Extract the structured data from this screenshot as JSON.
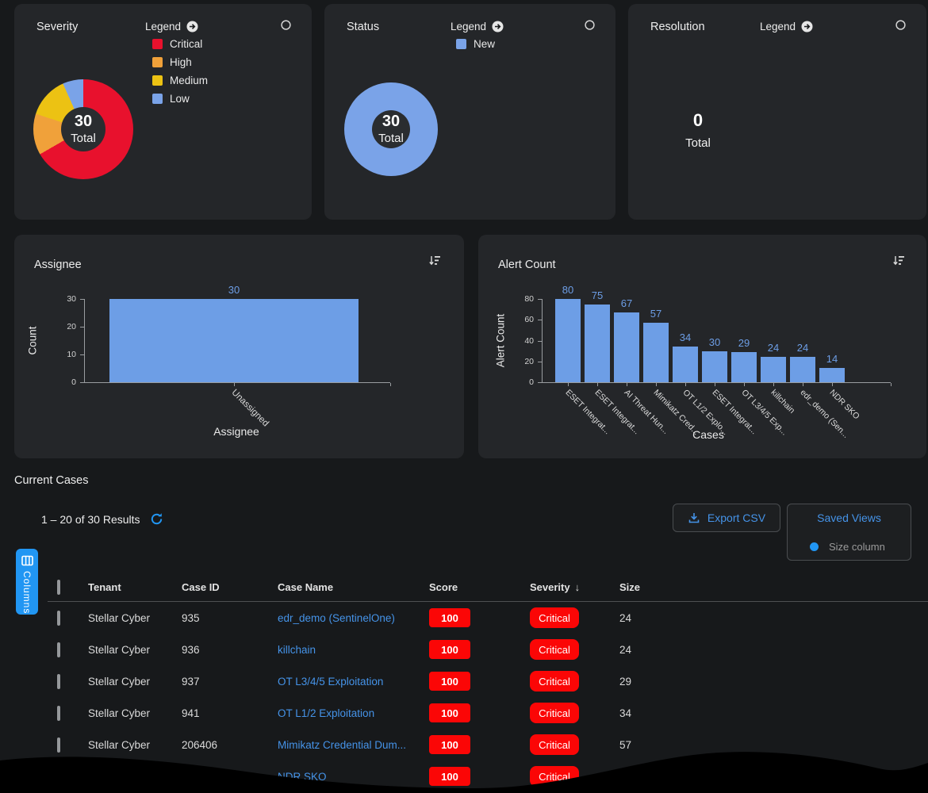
{
  "app": {
    "background": "#17191b",
    "card_bg": "#242629",
    "accent_blue": "#2196f3",
    "link_blue": "#4593e8",
    "bar_blue": "#6d9ee6",
    "badge_red": "#fb0606"
  },
  "cards": {
    "severity": {
      "title": "Severity",
      "legend_title": "Legend",
      "total": "30",
      "total_label": "Total",
      "legend": [
        {
          "label": "Critical",
          "color": "#e8112d"
        },
        {
          "label": "High",
          "color": "#f0a13a"
        },
        {
          "label": "Medium",
          "color": "#ecc213"
        },
        {
          "label": "Low",
          "color": "#7aa3e8"
        }
      ]
    },
    "status": {
      "title": "Status",
      "legend_title": "Legend",
      "total": "30",
      "total_label": "Total",
      "legend": [
        {
          "label": "New",
          "color": "#7aa3e8"
        }
      ]
    },
    "resolution": {
      "title": "Resolution",
      "legend_title": "Legend",
      "total": "0",
      "total_label": "Total",
      "legend": []
    }
  },
  "chart_data": [
    {
      "id": "severity_donut",
      "type": "pie",
      "title": "Severity",
      "labels": [
        "Critical",
        "High",
        "Medium",
        "Low"
      ],
      "values": [
        20,
        4,
        4,
        2
      ],
      "colors": [
        "#e8112d",
        "#f0a13a",
        "#ecc213",
        "#7aa3e8"
      ],
      "total": 30,
      "center_label": "Total",
      "legend_position": "top"
    },
    {
      "id": "status_donut",
      "type": "pie",
      "title": "Status",
      "labels": [
        "New"
      ],
      "values": [
        30
      ],
      "colors": [
        "#7aa3e8"
      ],
      "total": 30,
      "center_label": "Total",
      "legend_position": "top"
    },
    {
      "id": "resolution_donut",
      "type": "pie",
      "title": "Resolution",
      "labels": [],
      "values": [],
      "colors": [],
      "total": 0,
      "center_label": "Total",
      "legend_position": "top"
    },
    {
      "id": "assignee_bar",
      "type": "bar",
      "title": "Assignee",
      "categories": [
        "Unassigned"
      ],
      "values": [
        30
      ],
      "xlabel": "Assignee",
      "ylabel": "Count",
      "yticks": [
        0,
        10,
        20,
        30
      ],
      "ylim": [
        0,
        30
      ],
      "bar_color": "#6d9ee6",
      "grid": false,
      "value_labels": true
    },
    {
      "id": "alert_count_bar",
      "type": "bar",
      "title": "Alert Count",
      "categories": [
        "ESET Integrat...",
        "ESET Integrat...",
        "AI Threat Hun...",
        "Mimikatz Cred...",
        "OT L1/2 Explo...",
        "ESET Integrat...",
        "OT L3/4/5 Exp...",
        "killchain",
        "edr_demo (Sen...",
        "NDR SKO"
      ],
      "values": [
        80,
        75,
        67,
        57,
        34,
        30,
        29,
        24,
        24,
        14
      ],
      "xlabel": "Cases",
      "ylabel": "Alert Count",
      "yticks": [
        0,
        20,
        40,
        60,
        80
      ],
      "ylim": [
        0,
        80
      ],
      "bar_color": "#6d9ee6",
      "grid": false,
      "value_labels": true
    }
  ],
  "cases": {
    "section_title": "Current Cases",
    "results_text": "1 – 20 of 30 Results",
    "export_csv_label": "Export CSV",
    "saved_views_label": "Saved Views",
    "size_column_label": "Size column",
    "columns_button_label": "Columns",
    "sorted_by": "Severity",
    "sort_direction": "descending",
    "headers": {
      "tenant": "Tenant",
      "case_id": "Case ID",
      "case_name": "Case Name",
      "score": "Score",
      "severity": "Severity",
      "size": "Size"
    },
    "rows": [
      {
        "tenant": "Stellar Cyber",
        "case_id": "935",
        "case_name": "edr_demo (SentinelOne)",
        "score": "100",
        "severity": "Critical",
        "size": "24"
      },
      {
        "tenant": "Stellar Cyber",
        "case_id": "936",
        "case_name": "killchain",
        "score": "100",
        "severity": "Critical",
        "size": "24"
      },
      {
        "tenant": "Stellar Cyber",
        "case_id": "937",
        "case_name": "OT L3/4/5 Exploitation",
        "score": "100",
        "severity": "Critical",
        "size": "29"
      },
      {
        "tenant": "Stellar Cyber",
        "case_id": "941",
        "case_name": "OT L1/2 Exploitation",
        "score": "100",
        "severity": "Critical",
        "size": "34"
      },
      {
        "tenant": "Stellar Cyber",
        "case_id": "206406",
        "case_name": "Mimikatz Credential Dum...",
        "score": "100",
        "severity": "Critical",
        "size": "57"
      },
      {
        "tenant": "",
        "case_id": "",
        "case_name": "NDR SKO",
        "score": "100",
        "severity": "Critical",
        "size": ""
      }
    ]
  }
}
